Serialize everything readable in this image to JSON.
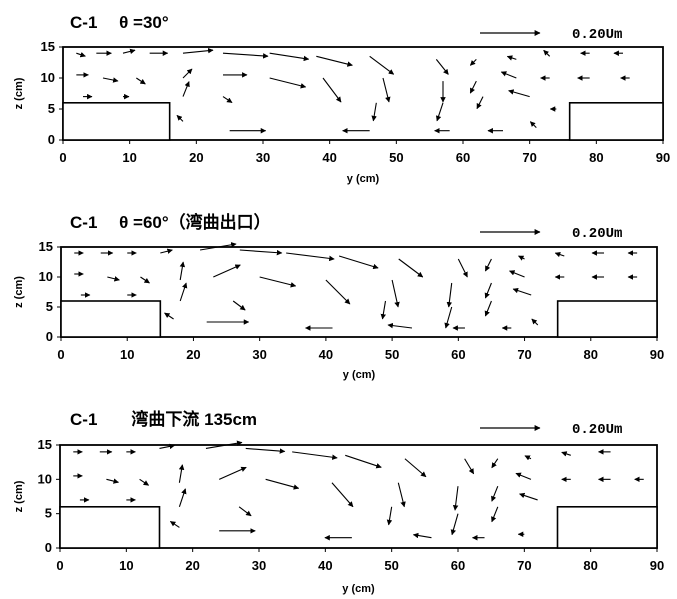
{
  "chart_data": [
    {
      "type": "vector_field",
      "title": "C-1　 θ =30°",
      "reference_vector_label": "0.20Um",
      "xlabel": "y (cm)",
      "ylabel": "z (cm)",
      "xlim": [
        0,
        90
      ],
      "ylim": [
        0,
        15
      ],
      "xticks": [
        0,
        10,
        20,
        30,
        40,
        50,
        60,
        70,
        80,
        90
      ],
      "yticks": [
        0,
        5,
        10,
        15
      ],
      "blocks": [
        {
          "y": [
            0,
            16
          ],
          "z": [
            0,
            6
          ]
        },
        {
          "y": [
            76,
            90
          ],
          "z": [
            0,
            6
          ]
        }
      ],
      "vectors": [
        {
          "y": 2,
          "z": 14,
          "u": 0.03,
          "w": -0.01
        },
        {
          "y": 5,
          "z": 14,
          "u": 0.05,
          "w": 0.0
        },
        {
          "y": 9,
          "z": 14,
          "u": 0.04,
          "w": 0.01
        },
        {
          "y": 13,
          "z": 14,
          "u": 0.06,
          "w": 0.0
        },
        {
          "y": 18,
          "z": 14,
          "u": 0.1,
          "w": 0.01
        },
        {
          "y": 24,
          "z": 14,
          "u": 0.15,
          "w": -0.01
        },
        {
          "y": 31,
          "z": 14,
          "u": 0.13,
          "w": -0.02
        },
        {
          "y": 38,
          "z": 13.5,
          "u": 0.12,
          "w": -0.03
        },
        {
          "y": 46,
          "z": 13.5,
          "u": 0.08,
          "w": -0.06
        },
        {
          "y": 56,
          "z": 13,
          "u": 0.04,
          "w": -0.05
        },
        {
          "y": 62,
          "z": 13,
          "u": -0.02,
          "w": -0.02
        },
        {
          "y": 68,
          "z": 13,
          "u": -0.03,
          "w": 0.01
        },
        {
          "y": 73,
          "z": 13.5,
          "u": -0.02,
          "w": 0.02
        },
        {
          "y": 79,
          "z": 14,
          "u": -0.03,
          "w": 0.0
        },
        {
          "y": 84,
          "z": 14,
          "u": -0.03,
          "w": 0.0
        },
        {
          "y": 2,
          "z": 10.5,
          "u": 0.04,
          "w": 0.0
        },
        {
          "y": 6,
          "z": 10,
          "u": 0.05,
          "w": -0.01
        },
        {
          "y": 11,
          "z": 10,
          "u": 0.03,
          "w": -0.02
        },
        {
          "y": 18,
          "z": 10,
          "u": 0.03,
          "w": 0.03
        },
        {
          "y": 24,
          "z": 10.5,
          "u": 0.08,
          "w": 0.0
        },
        {
          "y": 31,
          "z": 10,
          "u": 0.12,
          "w": -0.03
        },
        {
          "y": 39,
          "z": 10,
          "u": 0.06,
          "w": -0.08
        },
        {
          "y": 48,
          "z": 10,
          "u": 0.02,
          "w": -0.08
        },
        {
          "y": 57,
          "z": 9.5,
          "u": 0.0,
          "w": -0.07
        },
        {
          "y": 62,
          "z": 9.5,
          "u": -0.02,
          "w": -0.04
        },
        {
          "y": 68,
          "z": 10,
          "u": -0.05,
          "w": 0.02
        },
        {
          "y": 73,
          "z": 10,
          "u": -0.03,
          "w": 0.0
        },
        {
          "y": 79,
          "z": 10,
          "u": -0.04,
          "w": 0.0
        },
        {
          "y": 85,
          "z": 10,
          "u": -0.03,
          "w": 0.0
        },
        {
          "y": 3,
          "z": 7,
          "u": 0.03,
          "w": 0.0
        },
        {
          "y": 9,
          "z": 7,
          "u": 0.02,
          "w": 0.0
        },
        {
          "y": 18,
          "z": 7,
          "u": 0.02,
          "w": 0.05
        },
        {
          "y": 24,
          "z": 7,
          "u": 0.03,
          "w": -0.02
        },
        {
          "y": 47,
          "z": 6,
          "u": -0.01,
          "w": -0.06
        },
        {
          "y": 57,
          "z": 6,
          "u": -0.02,
          "w": -0.06
        },
        {
          "y": 63,
          "z": 7,
          "u": -0.02,
          "w": -0.04
        },
        {
          "y": 70,
          "z": 7,
          "u": -0.07,
          "w": 0.02
        },
        {
          "y": 74,
          "z": 5,
          "u": -0.02,
          "w": 0.0
        },
        {
          "y": 18,
          "z": 3,
          "u": -0.02,
          "w": 0.02
        },
        {
          "y": 25,
          "z": 1.5,
          "u": 0.12,
          "w": 0.0
        },
        {
          "y": 46,
          "z": 1.5,
          "u": -0.09,
          "w": 0.0
        },
        {
          "y": 58,
          "z": 1.5,
          "u": -0.05,
          "w": 0.0
        },
        {
          "y": 66,
          "z": 1.5,
          "u": -0.05,
          "w": 0.0
        },
        {
          "y": 71,
          "z": 2,
          "u": -0.02,
          "w": 0.02
        }
      ]
    },
    {
      "type": "vector_field",
      "title": "C-1　 θ =60°（湾曲出口）",
      "reference_vector_label": "0.20Um",
      "xlabel": "y (cm)",
      "ylabel": "z (cm)",
      "xlim": [
        0,
        90
      ],
      "ylim": [
        0,
        15
      ],
      "xticks": [
        0,
        10,
        20,
        30,
        40,
        50,
        60,
        70,
        80,
        90
      ],
      "yticks": [
        0,
        5,
        10,
        15
      ],
      "blocks": [
        {
          "y": [
            0,
            15
          ],
          "z": [
            0,
            6
          ]
        },
        {
          "y": [
            75,
            90
          ],
          "z": [
            0,
            6
          ]
        }
      ],
      "vectors": [
        {
          "y": 2,
          "z": 14,
          "u": 0.03,
          "w": 0.0
        },
        {
          "y": 6,
          "z": 14,
          "u": 0.04,
          "w": 0.0
        },
        {
          "y": 10,
          "z": 14,
          "u": 0.03,
          "w": 0.0
        },
        {
          "y": 15,
          "z": 14,
          "u": 0.04,
          "w": 0.01
        },
        {
          "y": 21,
          "z": 14.5,
          "u": 0.12,
          "w": 0.02
        },
        {
          "y": 27,
          "z": 14.5,
          "u": 0.14,
          "w": -0.01
        },
        {
          "y": 34,
          "z": 14,
          "u": 0.16,
          "w": -0.02
        },
        {
          "y": 42,
          "z": 13.5,
          "u": 0.13,
          "w": -0.04
        },
        {
          "y": 51,
          "z": 13,
          "u": 0.08,
          "w": -0.06
        },
        {
          "y": 60,
          "z": 13,
          "u": 0.03,
          "w": -0.06
        },
        {
          "y": 65,
          "z": 13,
          "u": -0.02,
          "w": -0.04
        },
        {
          "y": 70,
          "z": 13,
          "u": -0.02,
          "w": 0.01
        },
        {
          "y": 76,
          "z": 13.5,
          "u": -0.03,
          "w": 0.01
        },
        {
          "y": 82,
          "z": 14,
          "u": -0.04,
          "w": 0.0
        },
        {
          "y": 87,
          "z": 14,
          "u": -0.03,
          "w": 0.0
        },
        {
          "y": 2,
          "z": 10.5,
          "u": 0.03,
          "w": 0.0
        },
        {
          "y": 7,
          "z": 10,
          "u": 0.04,
          "w": -0.01
        },
        {
          "y": 12,
          "z": 10,
          "u": 0.03,
          "w": -0.02
        },
        {
          "y": 18,
          "z": 9.5,
          "u": 0.01,
          "w": 0.06
        },
        {
          "y": 23,
          "z": 10,
          "u": 0.09,
          "w": 0.04
        },
        {
          "y": 30,
          "z": 10,
          "u": 0.12,
          "w": -0.03
        },
        {
          "y": 40,
          "z": 9.5,
          "u": 0.08,
          "w": -0.08
        },
        {
          "y": 50,
          "z": 9.5,
          "u": 0.02,
          "w": -0.09
        },
        {
          "y": 59,
          "z": 9,
          "u": -0.01,
          "w": -0.08
        },
        {
          "y": 65,
          "z": 9,
          "u": -0.02,
          "w": -0.05
        },
        {
          "y": 70,
          "z": 10,
          "u": -0.05,
          "w": 0.02
        },
        {
          "y": 76,
          "z": 10,
          "u": -0.03,
          "w": 0.0
        },
        {
          "y": 82,
          "z": 10,
          "u": -0.04,
          "w": 0.0
        },
        {
          "y": 87,
          "z": 10,
          "u": -0.03,
          "w": 0.0
        },
        {
          "y": 3,
          "z": 7,
          "u": 0.03,
          "w": 0.0
        },
        {
          "y": 10,
          "z": 7,
          "u": 0.03,
          "w": 0.0
        },
        {
          "y": 18,
          "z": 6,
          "u": 0.02,
          "w": 0.06
        },
        {
          "y": 26,
          "z": 6,
          "u": 0.04,
          "w": -0.03
        },
        {
          "y": 49,
          "z": 6,
          "u": -0.01,
          "w": -0.06
        },
        {
          "y": 59,
          "z": 5,
          "u": -0.02,
          "w": -0.07
        },
        {
          "y": 65,
          "z": 6,
          "u": -0.02,
          "w": -0.05
        },
        {
          "y": 71,
          "z": 7,
          "u": -0.06,
          "w": 0.02
        },
        {
          "y": 17,
          "z": 3,
          "u": -0.03,
          "w": 0.02
        },
        {
          "y": 22,
          "z": 2.5,
          "u": 0.14,
          "w": 0.0
        },
        {
          "y": 41,
          "z": 1.5,
          "u": -0.09,
          "w": 0.0
        },
        {
          "y": 53,
          "z": 1.5,
          "u": -0.08,
          "w": 0.01
        },
        {
          "y": 61,
          "z": 1.5,
          "u": -0.04,
          "w": 0.0
        },
        {
          "y": 68,
          "z": 1.5,
          "u": -0.03,
          "w": 0.0
        },
        {
          "y": 72,
          "z": 2,
          "u": -0.02,
          "w": 0.02
        }
      ]
    },
    {
      "type": "vector_field",
      "title": "C-1　　湾曲下流 135cm",
      "reference_vector_label": "0.20Um",
      "xlabel": "y (cm)",
      "ylabel": "z (cm)",
      "xlim": [
        0,
        90
      ],
      "ylim": [
        0,
        15
      ],
      "xticks": [
        0,
        10,
        20,
        30,
        40,
        50,
        60,
        70,
        80,
        90
      ],
      "yticks": [
        0,
        5,
        10,
        15
      ],
      "blocks": [
        {
          "y": [
            0,
            15
          ],
          "z": [
            0,
            6
          ]
        },
        {
          "y": [
            75,
            90
          ],
          "z": [
            0,
            6
          ]
        }
      ],
      "vectors": [
        {
          "y": 2,
          "z": 14,
          "u": 0.03,
          "w": 0.0
        },
        {
          "y": 6,
          "z": 14,
          "u": 0.04,
          "w": 0.0
        },
        {
          "y": 10,
          "z": 14,
          "u": 0.03,
          "w": 0.0
        },
        {
          "y": 15,
          "z": 14.5,
          "u": 0.05,
          "w": 0.01
        },
        {
          "y": 22,
          "z": 14.5,
          "u": 0.12,
          "w": 0.02
        },
        {
          "y": 28,
          "z": 14.5,
          "u": 0.13,
          "w": -0.01
        },
        {
          "y": 35,
          "z": 14,
          "u": 0.15,
          "w": -0.02
        },
        {
          "y": 43,
          "z": 13.5,
          "u": 0.12,
          "w": -0.04
        },
        {
          "y": 52,
          "z": 13,
          "u": 0.07,
          "w": -0.06
        },
        {
          "y": 61,
          "z": 13,
          "u": 0.03,
          "w": -0.05
        },
        {
          "y": 66,
          "z": 13,
          "u": -0.02,
          "w": -0.03
        },
        {
          "y": 71,
          "z": 13,
          "u": -0.02,
          "w": 0.01
        },
        {
          "y": 77,
          "z": 13.5,
          "u": -0.03,
          "w": 0.01
        },
        {
          "y": 83,
          "z": 14,
          "u": -0.04,
          "w": 0.0
        },
        {
          "y": 2,
          "z": 10.5,
          "u": 0.03,
          "w": 0.0
        },
        {
          "y": 7,
          "z": 10,
          "u": 0.04,
          "w": -0.01
        },
        {
          "y": 12,
          "z": 10,
          "u": 0.03,
          "w": -0.02
        },
        {
          "y": 18,
          "z": 9.5,
          "u": 0.01,
          "w": 0.06
        },
        {
          "y": 24,
          "z": 10,
          "u": 0.09,
          "w": 0.04
        },
        {
          "y": 31,
          "z": 10,
          "u": 0.11,
          "w": -0.03
        },
        {
          "y": 41,
          "z": 9.5,
          "u": 0.07,
          "w": -0.08
        },
        {
          "y": 51,
          "z": 9.5,
          "u": 0.02,
          "w": -0.08
        },
        {
          "y": 60,
          "z": 9,
          "u": -0.01,
          "w": -0.08
        },
        {
          "y": 66,
          "z": 9,
          "u": -0.02,
          "w": -0.05
        },
        {
          "y": 71,
          "z": 10,
          "u": -0.05,
          "w": 0.02
        },
        {
          "y": 77,
          "z": 10,
          "u": -0.03,
          "w": 0.0
        },
        {
          "y": 83,
          "z": 10,
          "u": -0.04,
          "w": 0.0
        },
        {
          "y": 88,
          "z": 10,
          "u": -0.03,
          "w": 0.0
        },
        {
          "y": 3,
          "z": 7,
          "u": 0.03,
          "w": 0.0
        },
        {
          "y": 10,
          "z": 7,
          "u": 0.03,
          "w": 0.0
        },
        {
          "y": 18,
          "z": 6,
          "u": 0.02,
          "w": 0.06
        },
        {
          "y": 27,
          "z": 6,
          "u": 0.04,
          "w": -0.03
        },
        {
          "y": 50,
          "z": 6,
          "u": -0.01,
          "w": -0.06
        },
        {
          "y": 60,
          "z": 5,
          "u": -0.02,
          "w": -0.07
        },
        {
          "y": 66,
          "z": 6,
          "u": -0.02,
          "w": -0.05
        },
        {
          "y": 72,
          "z": 7,
          "u": -0.06,
          "w": 0.02
        },
        {
          "y": 18,
          "z": 3,
          "u": -0.03,
          "w": 0.02
        },
        {
          "y": 24,
          "z": 2.5,
          "u": 0.12,
          "w": 0.0
        },
        {
          "y": 44,
          "z": 1.5,
          "u": -0.09,
          "w": 0.0
        },
        {
          "y": 56,
          "z": 1.5,
          "u": -0.06,
          "w": 0.01
        },
        {
          "y": 64,
          "z": 1.5,
          "u": -0.04,
          "w": 0.0
        },
        {
          "y": 70,
          "z": 2,
          "u": -0.02,
          "w": 0.0
        }
      ]
    }
  ]
}
